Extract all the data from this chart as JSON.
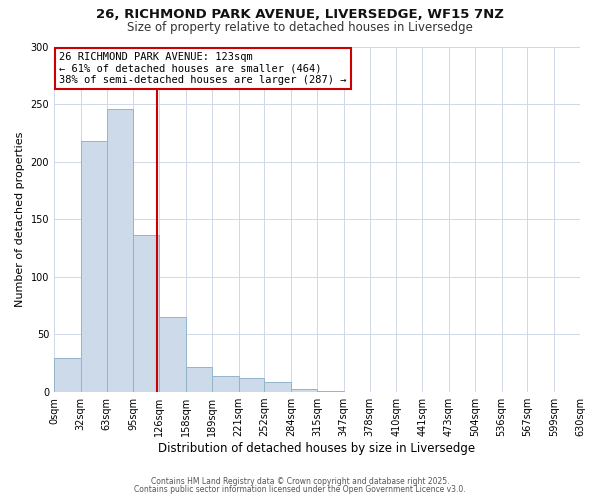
{
  "title1": "26, RICHMOND PARK AVENUE, LIVERSEDGE, WF15 7NZ",
  "title2": "Size of property relative to detached houses in Liversedge",
  "xlabel": "Distribution of detached houses by size in Liversedge",
  "ylabel": "Number of detached properties",
  "bin_edges": [
    0,
    32,
    63,
    95,
    126,
    158,
    189,
    221,
    252,
    284,
    315,
    347,
    378,
    410,
    441,
    473,
    504,
    536,
    567,
    599,
    630
  ],
  "bin_labels": [
    "0sqm",
    "32sqm",
    "63sqm",
    "95sqm",
    "126sqm",
    "158sqm",
    "189sqm",
    "221sqm",
    "252sqm",
    "284sqm",
    "315sqm",
    "347sqm",
    "378sqm",
    "410sqm",
    "441sqm",
    "473sqm",
    "504sqm",
    "536sqm",
    "567sqm",
    "599sqm",
    "630sqm"
  ],
  "bar_heights": [
    30,
    218,
    246,
    136,
    65,
    22,
    14,
    12,
    9,
    3,
    1,
    0,
    0,
    0,
    0,
    0,
    0,
    0,
    0,
    0
  ],
  "bar_color": "#cddaea",
  "bar_edgecolor": "#93b5cc",
  "vline_x": 123,
  "vline_color": "#cc0000",
  "ylim": [
    0,
    300
  ],
  "yticks": [
    0,
    50,
    100,
    150,
    200,
    250,
    300
  ],
  "annotation_title": "26 RICHMOND PARK AVENUE: 123sqm",
  "annotation_line1": "← 61% of detached houses are smaller (464)",
  "annotation_line2": "38% of semi-detached houses are larger (287) →",
  "footnote1": "Contains HM Land Registry data © Crown copyright and database right 2025.",
  "footnote2": "Contains public sector information licensed under the Open Government Licence v3.0.",
  "background_color": "#ffffff",
  "grid_color": "#d0d8e8",
  "title1_fontsize": 9.5,
  "title2_fontsize": 8.5,
  "xlabel_fontsize": 8.5,
  "ylabel_fontsize": 8.0,
  "tick_fontsize": 7.0,
  "annotation_fontsize": 7.5,
  "footnote_fontsize": 5.5
}
